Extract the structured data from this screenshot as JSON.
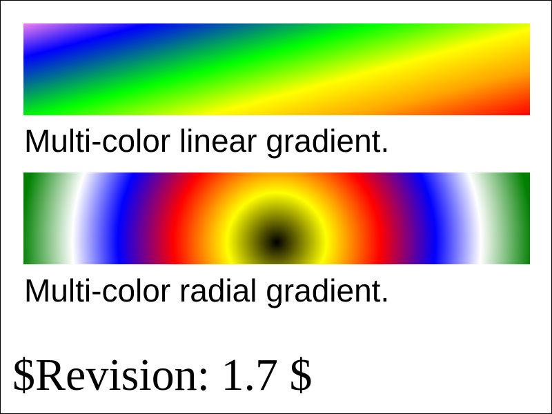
{
  "linear_gradient": {
    "caption": "Multi-color linear gradient.",
    "stop_colors": [
      "#ee82ee",
      "#0000ff",
      "#00ff00",
      "#ffff00",
      "#ffa500",
      "#ff0000"
    ]
  },
  "radial_gradient": {
    "caption": "Multi-color radial gradient.",
    "stop_colors": [
      "#000000",
      "#ffff00",
      "#ff0000",
      "#0000ff",
      "#ffffff",
      "#008000"
    ]
  },
  "footer": {
    "revision": "$Revision: 1.7 $"
  },
  "colors": {
    "background": "#ffffff",
    "border": "#000000",
    "text": "#000000"
  }
}
